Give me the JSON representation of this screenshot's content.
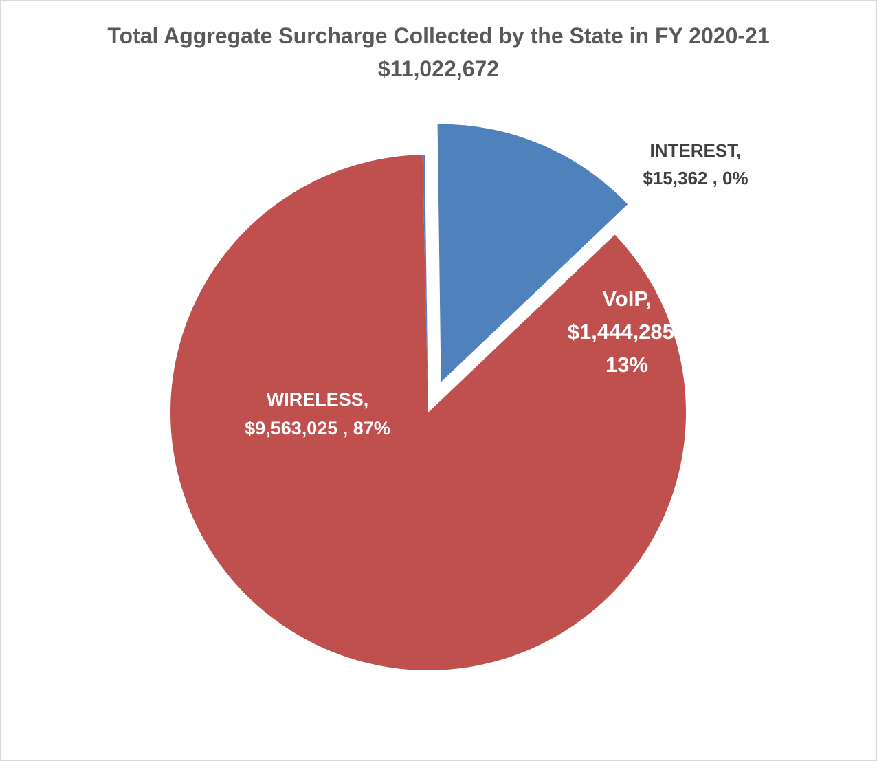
{
  "chart_data": {
    "type": "pie",
    "title": "Total Aggregate Surcharge Collected by the State in FY 2020-21",
    "subtitle": "$11,022,672",
    "total": 11022672,
    "slices": [
      {
        "name": "WIRELESS",
        "value": 9563025,
        "percent": 87,
        "label_lines": [
          "WIRELESS,",
          "$9,563,025 , 87%"
        ],
        "color": "#C0504D",
        "exploded": false
      },
      {
        "name": "INTEREST",
        "value": 15362,
        "percent": 0,
        "label_lines": [
          "INTEREST,",
          "$15,362 , 0%"
        ],
        "color": "#4F81BD",
        "exploded": false
      },
      {
        "name": "VoIP",
        "value": 1444285,
        "percent": 13,
        "label_lines": [
          "VoIP,",
          "$1,444,285 ,",
          "13%"
        ],
        "color": "#4F81BD",
        "exploded": true
      }
    ],
    "legend": "none",
    "data_labels": "category, value, percentage"
  }
}
